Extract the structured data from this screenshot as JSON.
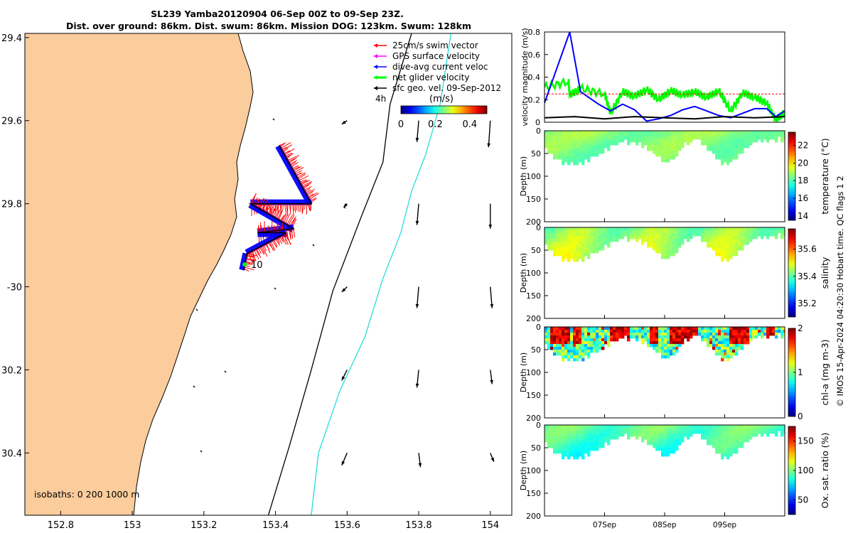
{
  "figure": {
    "title_line1": "SL239 Yamba20120904 06-Sep 00Z to 09-Sep 23Z.",
    "title_line2": "Dist. over ground: 86km. Dist. swum: 86km. Mission DOG: 123km. Swum: 128km",
    "copyright": "© IMOS 15-Apr-2024 04:20:30 Hobart time. QC flags 1  2",
    "colors": {
      "land": "#fbcc9c",
      "isobath_200": "#000000",
      "isobath_1000": "#28dcdc",
      "swim_vector": "#ff0000",
      "gps_velocity": "#ff00ff",
      "dive_avg_current": "#0000ff",
      "net_glider_velocity": "#00ff00",
      "sfc_geo_velocity": "#000000"
    }
  },
  "chart_data": [
    {
      "type": "map",
      "x_ticks": [
        152.8,
        153,
        153.2,
        153.4,
        153.6,
        153.8,
        154
      ],
      "x_tick_labels": [
        "152.8",
        "153",
        "153.2",
        "153.4",
        "153.6",
        "153.8",
        "154"
      ],
      "y_ticks": [
        -29.4,
        -29.6,
        -29.8,
        -30,
        -30.2,
        -30.4
      ],
      "y_tick_labels": [
        "29.4",
        "29.6",
        "29.8",
        "-30",
        "30.2",
        "30.4"
      ],
      "xlim": [
        152.7,
        154.06
      ],
      "ylim": [
        -30.55,
        -29.39
      ],
      "legend": {
        "placement": "top-right",
        "entries": [
          "25cm/s swim vector",
          "GPS surface velocity",
          "dive-avg current veloc",
          "net glider velocity",
          "sfc geo. vel. 09-Sep-2012"
        ]
      },
      "colorbar": {
        "label": "(m/s)",
        "left_label": "4h",
        "tick_labels": [
          "0",
          "0.2",
          "0.4"
        ],
        "range": [
          0,
          0.5
        ]
      },
      "isobaths_label": "isobaths: 0   200  1000 m",
      "track_label": "10",
      "track": {
        "points": [
          [
            153.41,
            -29.66
          ],
          [
            153.5,
            -29.8
          ],
          [
            153.33,
            -29.8
          ],
          [
            153.45,
            -29.86
          ],
          [
            153.35,
            -29.87
          ],
          [
            153.43,
            -29.87
          ],
          [
            153.32,
            -29.92
          ],
          [
            153.31,
            -29.96
          ]
        ]
      },
      "isobath_200_lon_lat": [
        [
          153.78,
          -29.39
        ],
        [
          153.72,
          -29.56
        ],
        [
          153.7,
          -29.7
        ],
        [
          153.64,
          -29.83
        ],
        [
          153.56,
          -30.01
        ],
        [
          153.5,
          -30.2
        ],
        [
          153.44,
          -30.38
        ],
        [
          153.38,
          -30.55
        ]
      ],
      "isobath_1000_lon_lat": [
        [
          153.89,
          -29.39
        ],
        [
          153.86,
          -29.56
        ],
        [
          153.82,
          -29.68
        ],
        [
          153.78,
          -29.77
        ],
        [
          153.75,
          -29.87
        ],
        [
          153.7,
          -29.98
        ],
        [
          153.65,
          -30.12
        ],
        [
          153.58,
          -30.25
        ],
        [
          153.52,
          -30.4
        ],
        [
          153.5,
          -30.55
        ]
      ],
      "sfc_geo_vectors": [
        {
          "lon": 153.6,
          "lat": -29.6,
          "u": -0.03,
          "v": -0.02
        },
        {
          "lon": 153.8,
          "lat": -29.6,
          "u": -0.01,
          "v": -0.12
        },
        {
          "lon": 154,
          "lat": -29.6,
          "u": -0.01,
          "v": -0.15
        },
        {
          "lon": 153.6,
          "lat": -29.8,
          "u": -0.02,
          "v": -0.02
        },
        {
          "lon": 153.8,
          "lat": -29.8,
          "u": -0.01,
          "v": -0.12
        },
        {
          "lon": 154,
          "lat": -29.8,
          "u": 0,
          "v": -0.14
        },
        {
          "lon": 153.6,
          "lat": -30,
          "u": -0.03,
          "v": -0.03
        },
        {
          "lon": 153.8,
          "lat": -30,
          "u": -0.01,
          "v": -0.12
        },
        {
          "lon": 154,
          "lat": -30,
          "u": 0.01,
          "v": -0.12
        },
        {
          "lon": 153.6,
          "lat": -30.2,
          "u": -0.03,
          "v": -0.06
        },
        {
          "lon": 153.8,
          "lat": -30.2,
          "u": -0.01,
          "v": -0.1
        },
        {
          "lon": 154,
          "lat": -30.2,
          "u": 0.01,
          "v": -0.08
        },
        {
          "lon": 153.6,
          "lat": -30.4,
          "u": -0.03,
          "v": -0.07
        },
        {
          "lon": 153.8,
          "lat": -30.4,
          "u": 0.01,
          "v": -0.08
        },
        {
          "lon": 154,
          "lat": -30.4,
          "u": 0.02,
          "v": -0.05
        }
      ]
    },
    {
      "type": "line",
      "ylabel": "velocity magnitude (m/s)",
      "ylim": [
        0,
        0.8
      ],
      "y_ticks": [
        0,
        0.2,
        0.4,
        0.6,
        0.8
      ],
      "x_range_days": [
        6,
        10
      ],
      "series": [
        {
          "color": "#00ff00",
          "x": [
            6.0,
            6.4,
            6.42,
            6.6,
            7.0,
            7.1,
            7.3,
            7.5,
            7.7,
            7.9,
            8.1,
            8.3,
            8.5,
            8.7,
            8.9,
            9.1,
            9.3,
            9.5,
            9.7,
            9.85,
            10.0
          ],
          "y": [
            0.31,
            0.36,
            0.24,
            0.3,
            0.25,
            0.08,
            0.27,
            0.23,
            0.29,
            0.2,
            0.28,
            0.24,
            0.27,
            0.22,
            0.28,
            0.1,
            0.26,
            0.22,
            0.17,
            0.02,
            0.09
          ]
        },
        {
          "color": "#0000ff",
          "x": [
            6.0,
            6.42,
            6.6,
            6.9,
            7.1,
            7.3,
            7.5,
            7.7,
            7.9,
            8.1,
            8.3,
            8.5,
            8.7,
            8.9,
            9.1,
            9.3,
            9.5,
            9.7,
            9.85,
            10.0
          ],
          "y": [
            0.17,
            0.8,
            0.27,
            0.16,
            0.1,
            0.16,
            0.11,
            0.01,
            0.03,
            0.06,
            0.11,
            0.14,
            0.1,
            0.06,
            0.04,
            0.08,
            0.12,
            0.12,
            0.05,
            0.1
          ]
        },
        {
          "color": "#000000",
          "x": [
            6.0,
            6.5,
            7.0,
            7.5,
            8.0,
            8.5,
            9.0,
            9.5,
            10.0
          ],
          "y": [
            0.04,
            0.05,
            0.03,
            0.05,
            0.04,
            0.03,
            0.05,
            0.04,
            0.05
          ]
        },
        {
          "color": "#ff0000",
          "x": [
            6.0,
            10.0
          ],
          "y": [
            0.25,
            0.25
          ]
        }
      ]
    },
    {
      "type": "heatmap",
      "variable": "temperature",
      "ylabel": "Depth (m)",
      "colorbar_label": "temperature (°C)",
      "clim": [
        13.5,
        23.5
      ],
      "colorbar_ticks": [
        14,
        16,
        18,
        20,
        22
      ],
      "base_value": 18.6
    },
    {
      "type": "heatmap",
      "variable": "salinity",
      "ylabel": "Depth (m)",
      "colorbar_label": "salinity",
      "clim": [
        35.1,
        35.75
      ],
      "colorbar_ticks": [
        35.2,
        35.4,
        35.6
      ],
      "base_value": 35.43
    },
    {
      "type": "heatmap",
      "variable": "chl-a",
      "ylabel": "Depth (m)",
      "colorbar_label": "chl-a (mg m-3)",
      "clim": [
        0,
        2
      ],
      "colorbar_ticks": [
        0,
        1,
        2
      ],
      "base_value": 0.85
    },
    {
      "type": "heatmap",
      "variable": "oxygen",
      "ylabel": "Depth (m)",
      "colorbar_label": "Ox. sat. ratio (%)",
      "clim": [
        25,
        175
      ],
      "colorbar_ticks": [
        50,
        100,
        150
      ],
      "base_value": 96
    }
  ],
  "section_axes": {
    "depth_ticks": [
      0,
      50,
      100,
      150,
      200
    ],
    "depth_tick_labels": [
      "0",
      "50",
      "100",
      "150",
      "200"
    ],
    "depth_range": [
      0,
      200
    ],
    "time_ticks": [
      7,
      8,
      9
    ],
    "time_tick_labels": [
      "07Sep",
      "08Sep",
      "09Sep"
    ],
    "profile_depth_curve": [
      [
        6.0,
        40
      ],
      [
        6.2,
        62
      ],
      [
        6.4,
        72
      ],
      [
        6.6,
        68
      ],
      [
        6.8,
        55
      ],
      [
        7.0,
        40
      ],
      [
        7.1,
        28
      ],
      [
        7.3,
        20
      ],
      [
        7.6,
        28
      ],
      [
        7.85,
        55
      ],
      [
        8.0,
        68
      ],
      [
        8.15,
        55
      ],
      [
        8.3,
        28
      ],
      [
        8.5,
        15
      ],
      [
        8.7,
        35
      ],
      [
        8.9,
        62
      ],
      [
        9.0,
        70
      ],
      [
        9.1,
        62
      ],
      [
        9.3,
        40
      ],
      [
        9.5,
        20
      ],
      [
        9.75,
        16
      ],
      [
        10.0,
        16
      ]
    ]
  }
}
